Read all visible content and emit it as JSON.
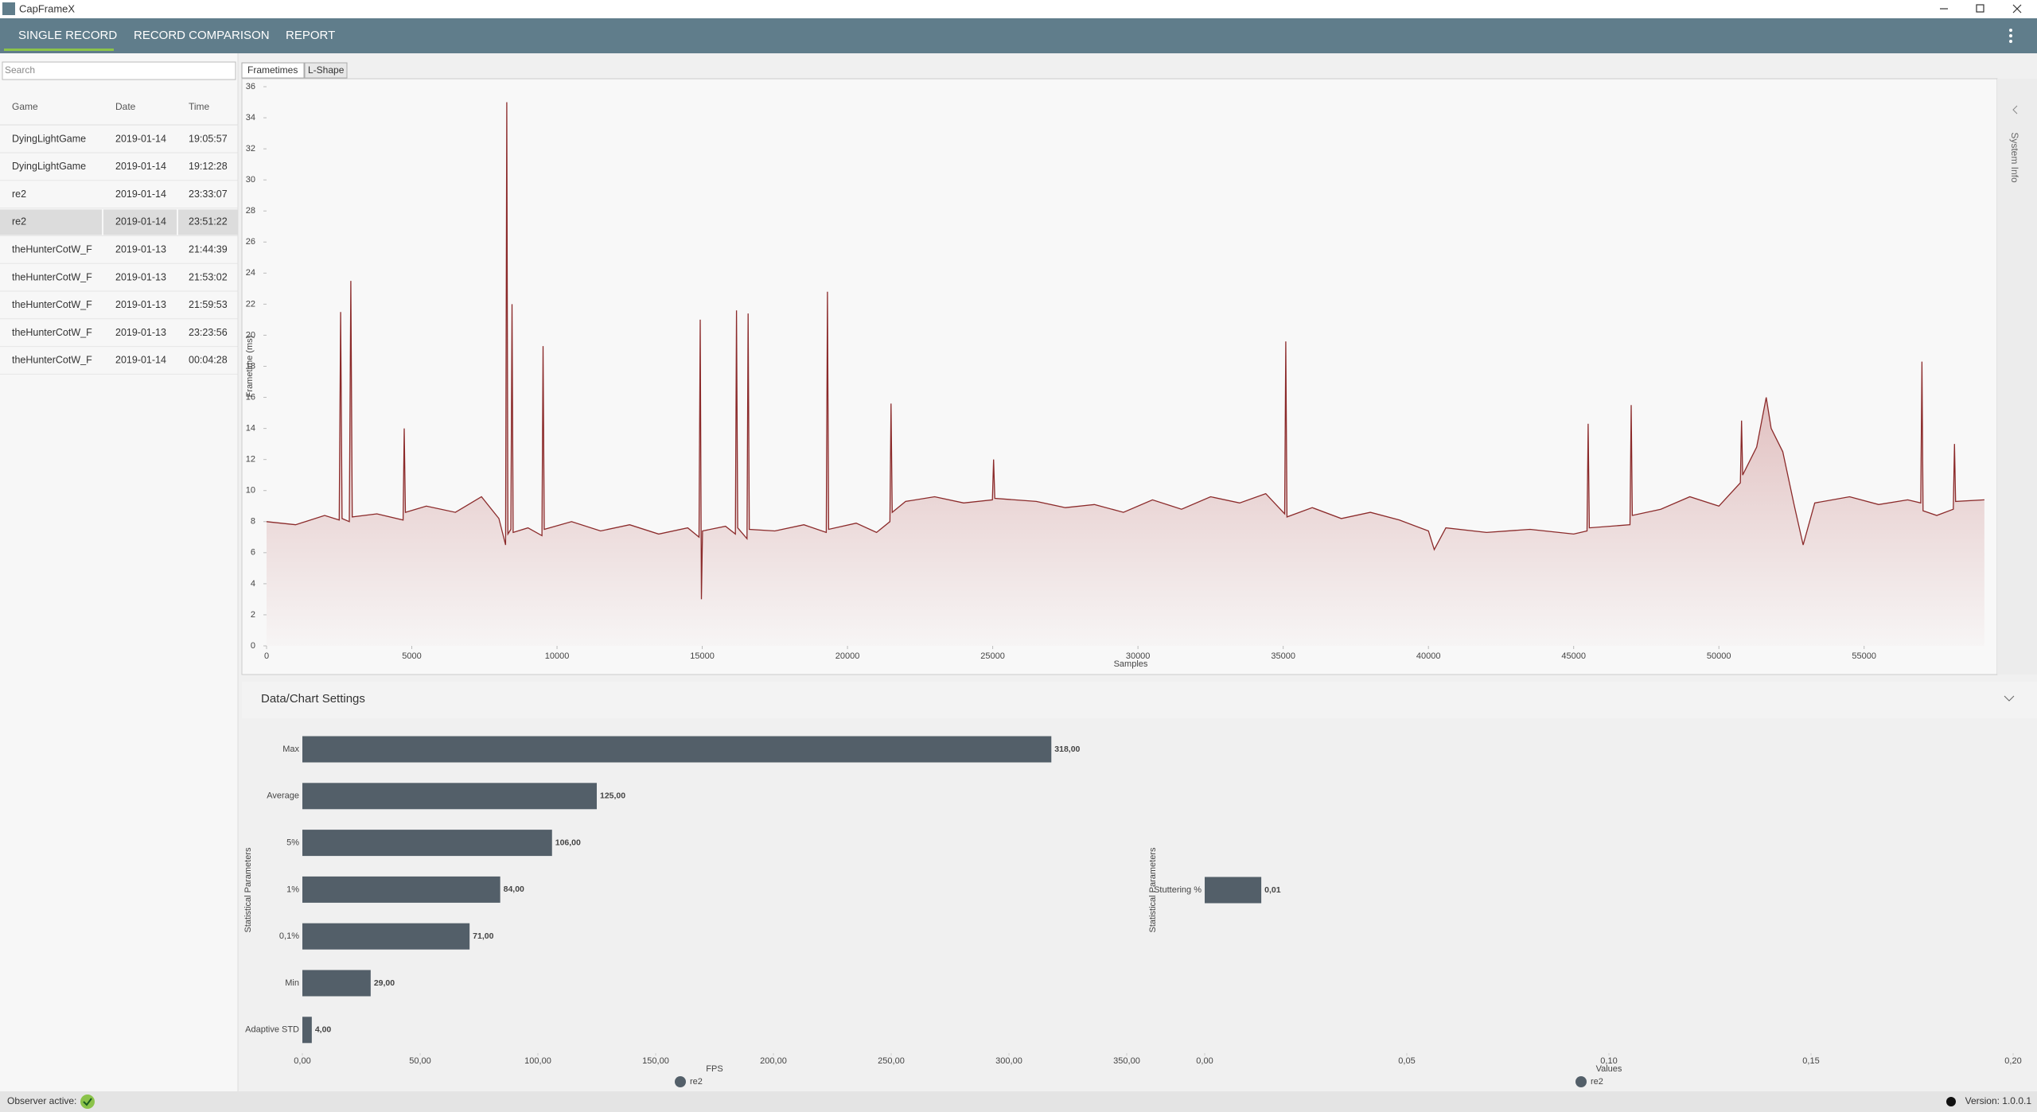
{
  "window": {
    "title": "CapFrameX"
  },
  "nav": {
    "tabs": [
      "SINGLE RECORD",
      "RECORD COMPARISON",
      "REPORT"
    ]
  },
  "sidebar": {
    "search_placeholder": "Search",
    "table": {
      "columns": [
        "Game",
        "Date",
        "Time"
      ],
      "selected_row": 3,
      "rows": [
        [
          "DyingLightGame",
          "2019-01-14",
          "19:05:57"
        ],
        [
          "DyingLightGame",
          "2019-01-14",
          "19:12:28"
        ],
        [
          "re2",
          "2019-01-14",
          "23:33:07"
        ],
        [
          "re2",
          "2019-01-14",
          "23:51:22"
        ],
        [
          "theHunterCotW_F",
          "2019-01-13",
          "21:44:39"
        ],
        [
          "theHunterCotW_F",
          "2019-01-13",
          "21:53:02"
        ],
        [
          "theHunterCotW_F",
          "2019-01-13",
          "21:59:53"
        ],
        [
          "theHunterCotW_F",
          "2019-01-13",
          "23:23:56"
        ],
        [
          "theHunterCotW_F",
          "2019-01-14",
          "00:04:28"
        ]
      ]
    }
  },
  "chart_tabs": [
    "Frametimes",
    "L-Shape"
  ],
  "side_panel": "System Info",
  "settings_header": "Data/Chart Settings",
  "chart_data": [
    {
      "type": "line",
      "color": "#8b2a2a",
      "fill": "#c77b7b",
      "ylabel": "Frametime (ms)",
      "xlabel": "Samples",
      "xlim": [
        0,
        59500
      ],
      "ylim": [
        0,
        36
      ],
      "xticks": [
        0,
        5000,
        10000,
        15000,
        20000,
        25000,
        30000,
        35000,
        40000,
        45000,
        50000,
        55000
      ],
      "yticks": [
        0,
        2,
        4,
        6,
        8,
        10,
        12,
        14,
        16,
        18,
        20,
        22,
        24,
        26,
        28,
        30,
        32,
        34,
        36
      ],
      "x": [
        0,
        1000,
        2000,
        2500,
        2550,
        2600,
        2850,
        2900,
        2950,
        3800,
        4700,
        4740,
        4780,
        5500,
        6500,
        7400,
        8000,
        8230,
        8270,
        8310,
        8410,
        8450,
        8490,
        9000,
        9480,
        9520,
        9560,
        10500,
        11500,
        12500,
        13500,
        14500,
        14890,
        14930,
        14970,
        15010,
        15800,
        16140,
        16180,
        16220,
        16540,
        16580,
        16620,
        17500,
        18500,
        19270,
        19310,
        19350,
        20300,
        21000,
        21460,
        21500,
        21540,
        22000,
        23000,
        24000,
        24990,
        25030,
        25070,
        26500,
        27500,
        28500,
        29500,
        30500,
        31500,
        32500,
        33500,
        34400,
        35050,
        35090,
        35130,
        36000,
        37000,
        38000,
        39000,
        40000,
        40200,
        40600,
        42000,
        43500,
        45000,
        45460,
        45500,
        45540,
        46940,
        46980,
        47020,
        48000,
        49000,
        50000,
        50740,
        50780,
        50820,
        51300,
        51630,
        51800,
        52200,
        52600,
        52900,
        53300,
        54500,
        55500,
        56500,
        56950,
        56990,
        57030,
        57500,
        58070,
        58110,
        58150,
        59140
      ],
      "values": [
        8,
        7.8,
        8.4,
        8.1,
        21.5,
        8.2,
        8,
        23.5,
        8.3,
        8.5,
        8.1,
        14,
        8.6,
        9,
        8.6,
        9.6,
        8.2,
        6.5,
        35,
        7.2,
        7.5,
        22,
        7.3,
        7.6,
        7.1,
        19.3,
        7.5,
        8,
        7.4,
        7.8,
        7.2,
        7.6,
        7,
        21,
        3,
        7.4,
        7.7,
        7.2,
        21.6,
        7.6,
        6.9,
        21.4,
        7.5,
        7.4,
        7.8,
        7.3,
        22.8,
        7.5,
        7.9,
        7.3,
        8,
        15.6,
        8.6,
        9.3,
        9.6,
        9.2,
        9.4,
        12,
        9.5,
        9.3,
        8.9,
        9.1,
        8.6,
        9.4,
        8.8,
        9.6,
        9.2,
        9.8,
        8.5,
        19.6,
        8.3,
        8.9,
        8.2,
        8.6,
        8.1,
        7.4,
        6.2,
        7.6,
        7.3,
        7.5,
        7.2,
        7.4,
        14.3,
        7.6,
        7.8,
        15.5,
        8.4,
        8.8,
        9.6,
        9,
        10.5,
        14.5,
        11,
        12.8,
        16,
        14,
        12.5,
        9,
        6.5,
        9.2,
        9.6,
        9.1,
        9.4,
        9.2,
        18.3,
        8.7,
        8.4,
        8.8,
        13,
        9.3,
        9.4
      ]
    },
    {
      "type": "bar",
      "ylabel": "Statistical Parameters",
      "xlabel": "FPS",
      "categories": [
        "Max",
        "Average",
        "5%",
        "1%",
        "0,1%",
        "Min",
        "Adaptive STD"
      ],
      "series": [
        {
          "name": "re2",
          "color": "#535f69",
          "values": [
            318,
            125,
            106,
            84,
            71,
            29,
            4
          ],
          "value_labels": [
            "318,00",
            "125,00",
            "106,00",
            "84,00",
            "71,00",
            "29,00",
            "4,00"
          ]
        }
      ],
      "xlim": [
        0,
        350
      ],
      "xticks": [
        {
          "value": 0,
          "label": "0,00"
        },
        {
          "value": 50,
          "label": "50,00"
        },
        {
          "value": 100,
          "label": "100,00"
        },
        {
          "value": 150,
          "label": "150,00"
        },
        {
          "value": 200,
          "label": "200,00"
        },
        {
          "value": 250,
          "label": "250,00"
        },
        {
          "value": 300,
          "label": "300,00"
        },
        {
          "value": 350,
          "label": "350,00"
        }
      ]
    },
    {
      "type": "bar",
      "ylabel": "Statistical Parameters",
      "xlabel": "Values",
      "categories": [
        "Stuttering %"
      ],
      "series": [
        {
          "name": "re2",
          "color": "#535f69",
          "values": [
            0.014
          ],
          "value_labels": [
            "0,01"
          ]
        }
      ],
      "xlim": [
        0,
        0.2
      ],
      "xticks": [
        {
          "value": 0,
          "label": "0,00"
        },
        {
          "value": 0.05,
          "label": "0,05"
        },
        {
          "value": 0.1,
          "label": "0,10"
        },
        {
          "value": 0.15,
          "label": "0,15"
        },
        {
          "value": 0.2,
          "label": "0,20"
        }
      ]
    }
  ],
  "status": {
    "observer": "Observer active:",
    "version": "Version: 1.0.0.1"
  }
}
